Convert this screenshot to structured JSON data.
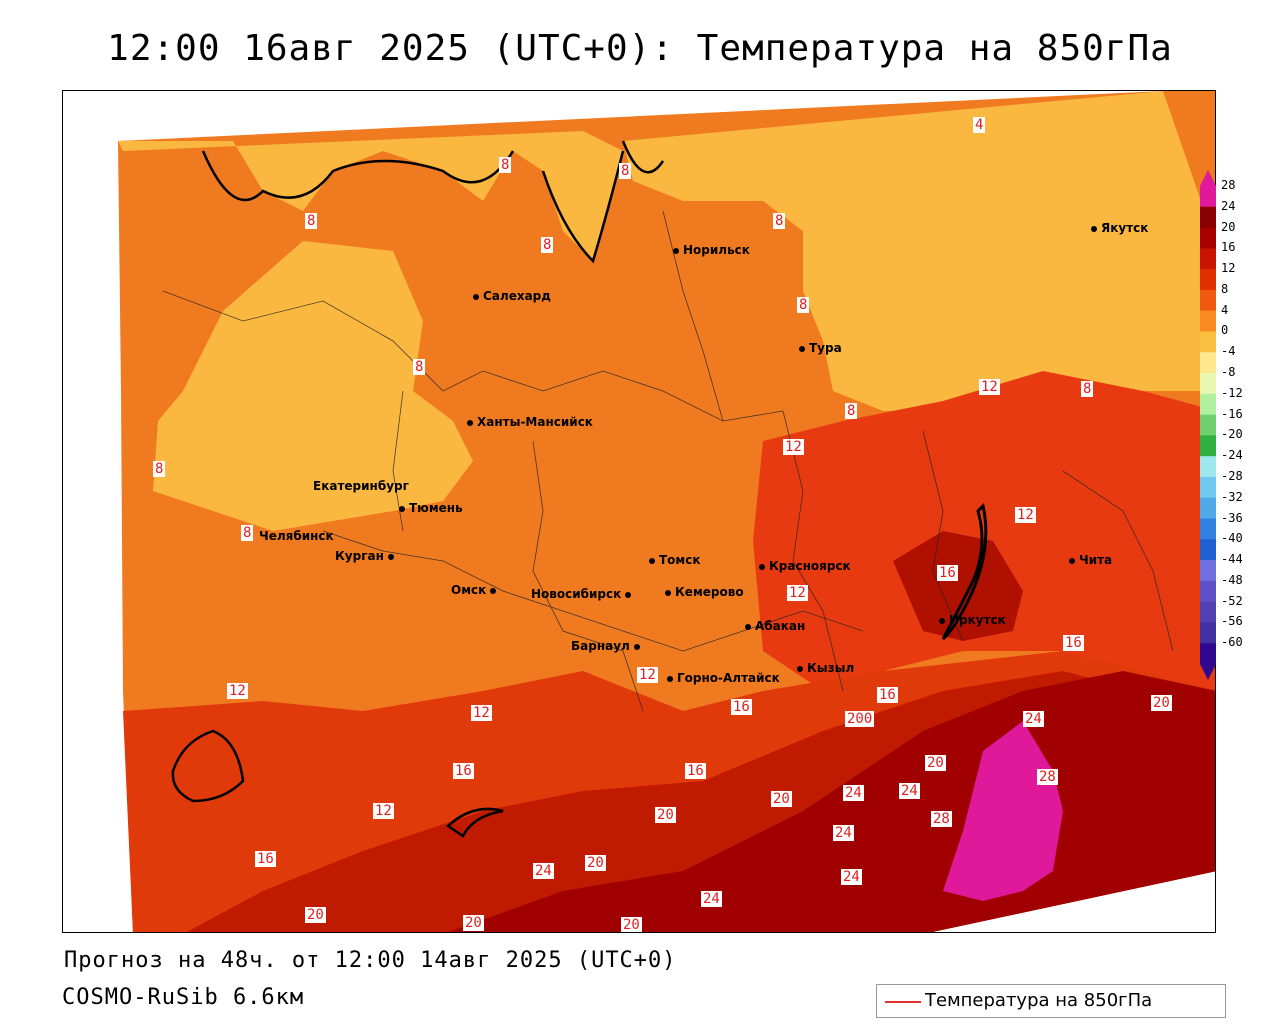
{
  "title": "12:00 16авг 2025 (UTC+0): Температура на 850гПа",
  "footer": {
    "forecast": "Прогноз на 48ч. от 12:00 14авг 2025 (UTC+0)",
    "model": "COSMO-RuSib 6.6км"
  },
  "legend": {
    "label": "Температура на 850гПа",
    "line_color": "#e03030"
  },
  "colorbar": {
    "ticks": [
      "28",
      "24",
      "20",
      "16",
      "12",
      "8",
      "4",
      "0",
      "-4",
      "-8",
      "-12",
      "-16",
      "-20",
      "-24",
      "-28",
      "-32",
      "-36",
      "-40",
      "-44",
      "-48",
      "-52",
      "-56",
      "-60"
    ],
    "colors": [
      "#e0189a",
      "#8b0000",
      "#a80000",
      "#c81400",
      "#e03000",
      "#f05a10",
      "#f88a20",
      "#fbbf40",
      "#fde890",
      "#e8f8b0",
      "#b0f0a0",
      "#70d070",
      "#30b040",
      "#a0e8f0",
      "#70c8f0",
      "#50a8e8",
      "#3080e0",
      "#2060d0",
      "#7070e0",
      "#6050c8",
      "#5040b0",
      "#4030a0",
      "#300890"
    ]
  },
  "cities": [
    {
      "name": "Норильск"
    },
    {
      "name": "Якутск"
    },
    {
      "name": "Салехард"
    },
    {
      "name": "Тура"
    },
    {
      "name": "Ханты-Мансийск"
    },
    {
      "name": "Екатеринбург"
    },
    {
      "name": "Тюмень"
    },
    {
      "name": "Челябинск"
    },
    {
      "name": "Курган"
    },
    {
      "name": "Омск"
    },
    {
      "name": "Новосибирск"
    },
    {
      "name": "Томск"
    },
    {
      "name": "Кемерово"
    },
    {
      "name": "Красноярск"
    },
    {
      "name": "Барнаул"
    },
    {
      "name": "Абакан"
    },
    {
      "name": "Горно-Алтайск"
    },
    {
      "name": "Кызыл"
    },
    {
      "name": "Иркутск"
    },
    {
      "name": "Чита"
    }
  ],
  "contour_labels": [
    {
      "text": "4"
    },
    {
      "text": "8"
    },
    {
      "text": "8"
    },
    {
      "text": "8"
    },
    {
      "text": "8"
    },
    {
      "text": "8"
    },
    {
      "text": "8"
    },
    {
      "text": "8"
    },
    {
      "text": "8"
    },
    {
      "text": "8"
    },
    {
      "text": "8"
    },
    {
      "text": "8"
    },
    {
      "text": "12"
    },
    {
      "text": "12"
    },
    {
      "text": "12"
    },
    {
      "text": "12"
    },
    {
      "text": "12"
    },
    {
      "text": "12"
    },
    {
      "text": "12"
    },
    {
      "text": "12"
    },
    {
      "text": "16"
    },
    {
      "text": "16"
    },
    {
      "text": "16"
    },
    {
      "text": "16"
    },
    {
      "text": "16"
    },
    {
      "text": "16"
    },
    {
      "text": "16"
    },
    {
      "text": "20"
    },
    {
      "text": "20"
    },
    {
      "text": "20"
    },
    {
      "text": "20"
    },
    {
      "text": "20"
    },
    {
      "text": "20"
    },
    {
      "text": "20"
    },
    {
      "text": "20"
    },
    {
      "text": "24"
    },
    {
      "text": "24"
    },
    {
      "text": "24"
    },
    {
      "text": "24"
    },
    {
      "text": "24"
    },
    {
      "text": "24"
    },
    {
      "text": "24"
    },
    {
      "text": "28"
    },
    {
      "text": "28"
    },
    {
      "text": "200"
    }
  ]
}
